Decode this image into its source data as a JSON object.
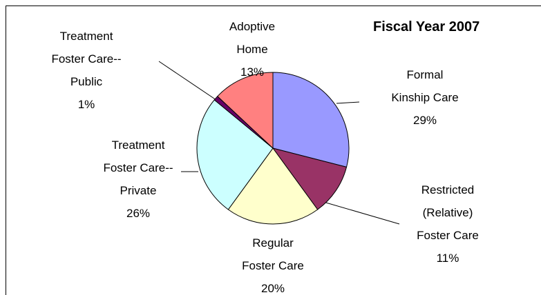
{
  "chart_data": {
    "type": "pie",
    "title": "Fiscal Year 2007",
    "categories": [
      "Formal\nKinship Care",
      "Restricted\n(Relative)\nFoster Care",
      "Regular\nFoster Care",
      "Treatment\nFoster Care--\nPrivate",
      "Treatment\nFoster Care--\nPublic",
      "Adoptive\nHome"
    ],
    "values": [
      29,
      11,
      20,
      26,
      1,
      13
    ],
    "value_labels": [
      "29%",
      "11%",
      "20%",
      "26%",
      "1%",
      "13%"
    ],
    "colors": [
      "#9999ff",
      "#993366",
      "#ffffcc",
      "#ccffff",
      "#660066",
      "#ff8080"
    ]
  }
}
